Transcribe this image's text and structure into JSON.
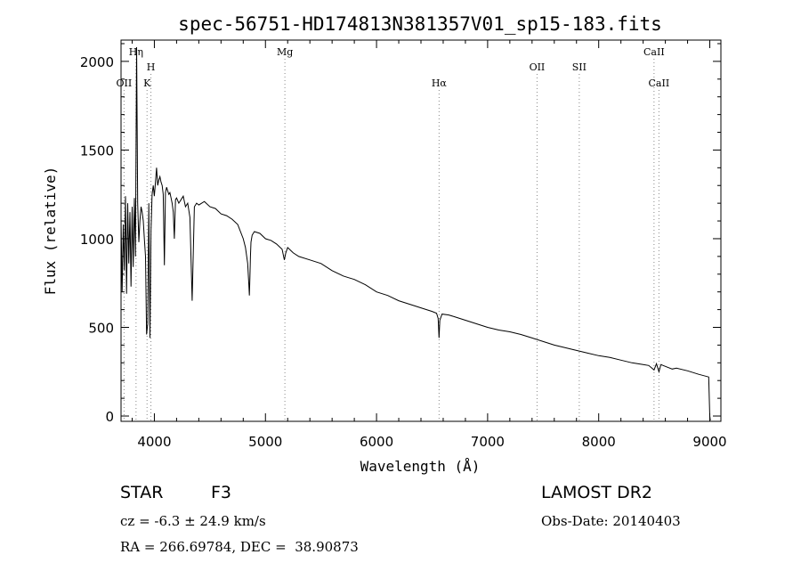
{
  "chart_data": {
    "type": "line",
    "title": "spec-56751-HD174813N381357V01_sp15-183.fits",
    "xlabel": "Wavelength (Å)",
    "ylabel": "Flux (relative)",
    "xlim": [
      3700,
      9100
    ],
    "ylim": [
      -30,
      2120
    ],
    "xticks": [
      4000,
      5000,
      6000,
      7000,
      8000,
      9000
    ],
    "yticks": [
      0,
      500,
      1000,
      1500,
      2000
    ],
    "grid": false,
    "line_color": "#000000",
    "marker_color": "#888888",
    "lines": [
      {
        "label": "OII",
        "x": 3727,
        "level": "low"
      },
      {
        "label": "Hη",
        "x": 3835,
        "level": "top"
      },
      {
        "label": "K",
        "x": 3934,
        "level": "low"
      },
      {
        "label": "H",
        "x": 3969,
        "level": "mid"
      },
      {
        "label": "Mg",
        "x": 5175,
        "level": "top"
      },
      {
        "label": "Hα",
        "x": 6563,
        "level": "low"
      },
      {
        "label": "OII",
        "x": 7445,
        "level": "mid"
      },
      {
        "label": "SII",
        "x": 7825,
        "level": "mid"
      },
      {
        "label": "CaII",
        "x": 8498,
        "level": "top"
      },
      {
        "label": "CaII",
        "x": 8542,
        "level": "low"
      }
    ],
    "series": [
      {
        "x": [
          3700,
          3710,
          3720,
          3730,
          3740,
          3750,
          3760,
          3770,
          3780,
          3790,
          3800,
          3810,
          3820,
          3830,
          3840,
          3850,
          3860,
          3870,
          3880,
          3890,
          3900,
          3910,
          3920,
          3930,
          3940,
          3950,
          3960,
          3970,
          3980,
          3990,
          4000,
          4010,
          4020,
          4030,
          4040,
          4050,
          4060,
          4070,
          4080,
          4090,
          4100,
          4110,
          4120,
          4130,
          4140,
          4150,
          4160,
          4170,
          4180,
          4190,
          4200,
          4220,
          4240,
          4260,
          4280,
          4300,
          4320,
          4340,
          4360,
          4380,
          4400,
          4450,
          4500,
          4550,
          4600,
          4650,
          4700,
          4750,
          4800,
          4820,
          4840,
          4850,
          4855,
          4860,
          4865,
          4870,
          4880,
          4900,
          4950,
          5000,
          5050,
          5100,
          5150,
          5170,
          5183,
          5200,
          5250,
          5300,
          5400,
          5500,
          5600,
          5700,
          5750,
          5800,
          5900,
          6000,
          6100,
          6200,
          6300,
          6400,
          6500,
          6540,
          6555,
          6563,
          6570,
          6590,
          6650,
          6700,
          6800,
          6900,
          7000,
          7100,
          7200,
          7300,
          7400,
          7500,
          7600,
          7700,
          7800,
          7900,
          8000,
          8100,
          8200,
          8300,
          8400,
          8450,
          8498,
          8520,
          8542,
          8560,
          8600,
          8662,
          8700,
          8800,
          8900,
          8990,
          9000,
          9005
        ],
        "y": [
          1120,
          700,
          1080,
          820,
          1240,
          690,
          1200,
          860,
          1150,
          730,
          1180,
          840,
          1230,
          900,
          2080,
          1200,
          980,
          1100,
          1180,
          1150,
          1100,
          1000,
          900,
          460,
          520,
          1200,
          440,
          1050,
          1250,
          1300,
          1240,
          1320,
          1400,
          1300,
          1330,
          1350,
          1320,
          1300,
          1250,
          850,
          1260,
          1290,
          1270,
          1250,
          1260,
          1230,
          1200,
          1150,
          1000,
          1220,
          1230,
          1200,
          1220,
          1240,
          1180,
          1200,
          1120,
          650,
          1180,
          1200,
          1190,
          1210,
          1180,
          1170,
          1140,
          1130,
          1110,
          1080,
          1000,
          950,
          860,
          750,
          680,
          780,
          900,
          980,
          1020,
          1040,
          1030,
          1000,
          990,
          970,
          940,
          880,
          920,
          950,
          920,
          900,
          880,
          860,
          820,
          790,
          780,
          770,
          740,
          700,
          680,
          650,
          630,
          610,
          590,
          580,
          550,
          440,
          540,
          575,
          570,
          560,
          540,
          520,
          500,
          485,
          475,
          460,
          440,
          420,
          400,
          385,
          370,
          355,
          340,
          330,
          315,
          300,
          290,
          285,
          260,
          295,
          250,
          290,
          280,
          265,
          270,
          255,
          235,
          220,
          0,
          -25
        ]
      }
    ]
  },
  "footer": {
    "object_type": "STAR",
    "subclass": "F3",
    "survey": "LAMOST DR2",
    "cz": "cz = -6.3 ± 24.9 km/s",
    "obs_date": "Obs-Date: 20140403",
    "coords": "RA = 266.69784, DEC =  38.90873"
  }
}
